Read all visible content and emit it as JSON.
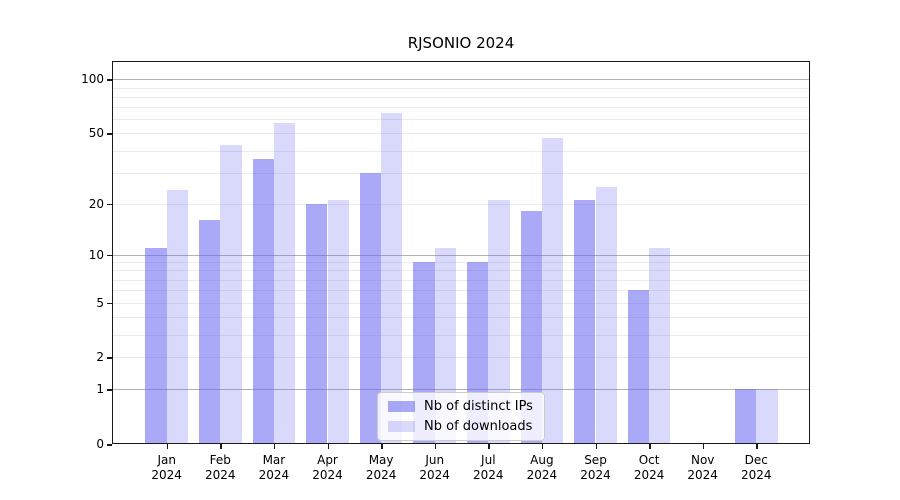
{
  "title": "RJSONIO 2024",
  "chart_data": {
    "type": "bar",
    "title": "RJSONIO 2024",
    "xlabel": "",
    "ylabel": "",
    "months": [
      "Jan",
      "Feb",
      "Mar",
      "Apr",
      "May",
      "Jun",
      "Jul",
      "Aug",
      "Sep",
      "Oct",
      "Nov",
      "Dec"
    ],
    "year": "2024",
    "categories": [
      "Jan 2024",
      "Feb 2024",
      "Mar 2024",
      "Apr 2024",
      "May 2024",
      "Jun 2024",
      "Jul 2024",
      "Aug 2024",
      "Sep 2024",
      "Oct 2024",
      "Nov 2024",
      "Dec 2024"
    ],
    "series": [
      {
        "name": "Nb of distinct IPs",
        "values": [
          11,
          16,
          36,
          20,
          30,
          9,
          9,
          18,
          21,
          6,
          0,
          1
        ],
        "color": "rgba(102,102,240,0.56)"
      },
      {
        "name": "Nb of downloads",
        "values": [
          24,
          43,
          57,
          21,
          65,
          11,
          21,
          47,
          25,
          11,
          0,
          1
        ],
        "color": "rgba(102,102,240,0.25)"
      }
    ],
    "yscale": "log1p",
    "yticks": [
      0,
      1,
      2,
      5,
      10,
      20,
      50,
      100
    ],
    "ylim": [
      0,
      125
    ],
    "grid": {
      "major": [
        1,
        10,
        100
      ],
      "minor": [
        2,
        3,
        4,
        5,
        6,
        7,
        8,
        9,
        20,
        30,
        40,
        50,
        60,
        70,
        80,
        90
      ]
    },
    "legend": {
      "position": "inside-bottom-center",
      "labels": [
        "Nb of distinct IPs",
        "Nb of downloads"
      ]
    }
  },
  "colors": {
    "background": "#ffffff",
    "bar_distinct_ips": "rgba(102,102,240,0.56)",
    "bar_downloads": "rgba(102,102,240,0.25)",
    "grid_major": "#b2b2b2",
    "grid_minor": "#ebebeb",
    "axis": "#1a1a1a",
    "text": "#000000",
    "legend_border": "#cccccc"
  }
}
